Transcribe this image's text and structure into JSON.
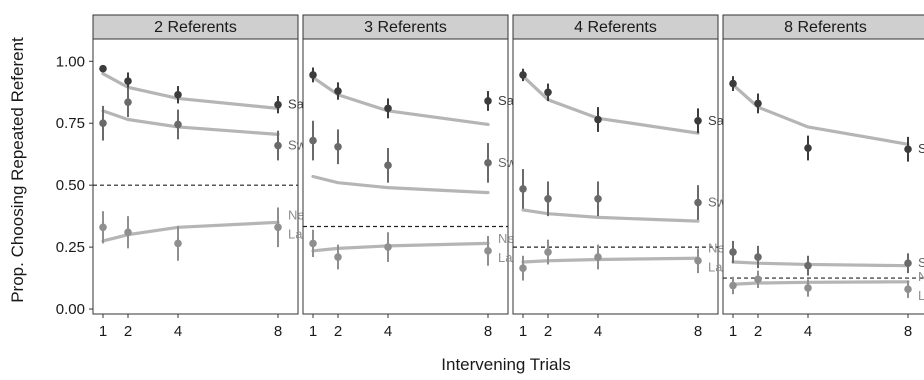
{
  "chart_data": {
    "type": "line",
    "title": "",
    "xlabel": "Intervening Trials",
    "ylabel": "Prop. Choosing Repeated Referent",
    "x_ticks": [
      1,
      2,
      4,
      8
    ],
    "x_range": [
      0.6,
      8.8
    ],
    "ylim": [
      -0.02,
      1.09
    ],
    "y_ticks": [
      "0.00",
      "0.25",
      "0.50",
      "0.75",
      "1.00"
    ],
    "grid": false,
    "colors": {
      "same": "#3c3c3c",
      "switch": "#6a6a6a",
      "new_label": "#8f8f8f",
      "model_line": "#b5b5b5",
      "strip": "#cfcfcf"
    },
    "panels": [
      {
        "title": "2 Referents",
        "chance": 0.5,
        "series": [
          {
            "name": "Same",
            "x": [
              1,
              2,
              4,
              8
            ],
            "points": [
              0.97,
              0.92,
              0.865,
              0.825
            ],
            "err": [
              0.01,
              0.035,
              0.035,
              0.035
            ],
            "model": [
              0.95,
              0.895,
              0.85,
              0.81
            ]
          },
          {
            "name": "Switch",
            "x": [
              1,
              2,
              4,
              8
            ],
            "points": [
              0.75,
              0.835,
              0.745,
              0.66
            ],
            "err": [
              0.07,
              0.06,
              0.06,
              0.06
            ],
            "model": [
              0.8,
              0.765,
              0.735,
              0.705
            ]
          },
          {
            "name": "New Label",
            "x": [
              1,
              2,
              4,
              8
            ],
            "points": [
              0.33,
              0.31,
              0.265,
              0.33
            ],
            "err": [
              0.065,
              0.065,
              0.07,
              0.08
            ],
            "model": [
              0.275,
              0.3,
              0.33,
              0.35
            ]
          }
        ]
      },
      {
        "title": "3 Referents",
        "chance": 0.3333,
        "series": [
          {
            "name": "Same",
            "x": [
              1,
              2,
              4,
              8
            ],
            "points": [
              0.945,
              0.88,
              0.81,
              0.84
            ],
            "err": [
              0.03,
              0.035,
              0.04,
              0.04
            ],
            "model": [
              0.935,
              0.865,
              0.8,
              0.745
            ]
          },
          {
            "name": "Switch",
            "x": [
              1,
              2,
              4,
              8
            ],
            "points": [
              0.68,
              0.655,
              0.58,
              0.59
            ],
            "err": [
              0.08,
              0.07,
              0.07,
              0.08
            ],
            "model": [
              0.535,
              0.51,
              0.49,
              0.47
            ]
          },
          {
            "name": "New Label",
            "x": [
              1,
              2,
              4,
              8
            ],
            "points": [
              0.265,
              0.21,
              0.25,
              0.235
            ],
            "err": [
              0.055,
              0.05,
              0.06,
              0.06
            ],
            "model": [
              0.235,
              0.245,
              0.255,
              0.265
            ]
          }
        ]
      },
      {
        "title": "4 Referents",
        "chance": 0.25,
        "series": [
          {
            "name": "Same",
            "x": [
              1,
              2,
              4,
              8
            ],
            "points": [
              0.945,
              0.875,
              0.765,
              0.76
            ],
            "err": [
              0.025,
              0.035,
              0.05,
              0.05
            ],
            "model": [
              0.94,
              0.845,
              0.77,
              0.71
            ]
          },
          {
            "name": "Switch",
            "x": [
              1,
              2,
              4,
              8
            ],
            "points": [
              0.485,
              0.445,
              0.445,
              0.43
            ],
            "err": [
              0.08,
              0.07,
              0.07,
              0.07
            ],
            "model": [
              0.4,
              0.385,
              0.37,
              0.355
            ]
          },
          {
            "name": "New Label",
            "x": [
              1,
              2,
              4,
              8
            ],
            "points": [
              0.165,
              0.23,
              0.21,
              0.195
            ],
            "err": [
              0.05,
              0.05,
              0.05,
              0.05
            ],
            "model": [
              0.19,
              0.195,
              0.2,
              0.205
            ]
          }
        ]
      },
      {
        "title": "8 Referents",
        "chance": 0.125,
        "series": [
          {
            "name": "Same",
            "x": [
              1,
              2,
              4,
              8
            ],
            "points": [
              0.91,
              0.83,
              0.65,
              0.645
            ],
            "err": [
              0.03,
              0.04,
              0.05,
              0.05
            ],
            "model": [
              0.905,
              0.815,
              0.735,
              0.665
            ]
          },
          {
            "name": "Switch",
            "x": [
              1,
              2,
              4,
              8
            ],
            "points": [
              0.23,
              0.21,
              0.175,
              0.185
            ],
            "err": [
              0.045,
              0.045,
              0.04,
              0.04
            ],
            "model": [
              0.19,
              0.185,
              0.18,
              0.175
            ]
          },
          {
            "name": "New Label",
            "x": [
              1,
              2,
              4,
              8
            ],
            "points": [
              0.095,
              0.12,
              0.085,
              0.08
            ],
            "err": [
              0.035,
              0.035,
              0.035,
              0.035
            ],
            "model": [
              0.1,
              0.105,
              0.108,
              0.11
            ]
          }
        ]
      }
    ],
    "series_labels": [
      [
        "Same",
        "Switch",
        "New",
        "Label"
      ],
      [
        "Same",
        "Switch",
        "New",
        "Label"
      ],
      [
        "Same",
        "Switch",
        "New",
        "Label"
      ],
      [
        "Same",
        "Switch",
        "New",
        "Label"
      ]
    ]
  }
}
